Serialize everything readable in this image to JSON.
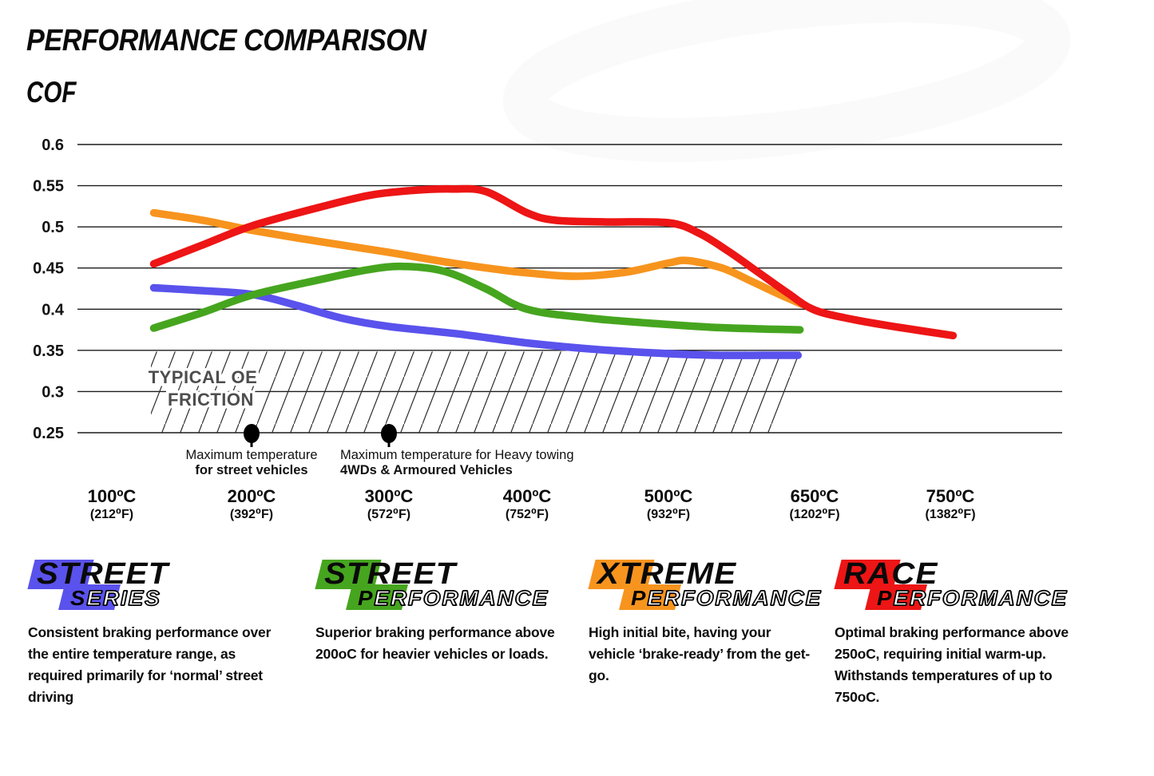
{
  "page": {
    "title": "PERFORMANCE COMPARISON",
    "y_axis_title": "COF"
  },
  "chart_data": {
    "type": "line",
    "title": "PERFORMANCE COMPARISON",
    "ylabel": "COF",
    "xlabel": "",
    "ylim": [
      0.25,
      0.6
    ],
    "y_ticks": [
      0.6,
      0.55,
      0.5,
      0.45,
      0.4,
      0.35,
      0.3,
      0.25
    ],
    "grid": true,
    "legend": "none",
    "x_axis": {
      "values_c": [
        100,
        200,
        300,
        400,
        500,
        650,
        750
      ],
      "labels_c": [
        "100ºC",
        "200ºC",
        "300ºC",
        "400ºC",
        "500ºC",
        "650ºC",
        "750ºC"
      ],
      "labels_f": [
        "(212⁰F)",
        "(392⁰F)",
        "(572⁰F)",
        "(752⁰F)",
        "(932⁰F)",
        "(1202⁰F)",
        "(1382⁰F)"
      ]
    },
    "series": [
      {
        "name": "Street Series",
        "color": "#5a52ec",
        "points": [
          [
            130,
            0.426
          ],
          [
            160,
            0.423
          ],
          [
            200,
            0.418
          ],
          [
            232,
            0.405
          ],
          [
            266,
            0.389
          ],
          [
            300,
            0.379
          ],
          [
            350,
            0.37
          ],
          [
            400,
            0.359
          ],
          [
            450,
            0.351
          ],
          [
            500,
            0.346
          ],
          [
            550,
            0.344
          ],
          [
            600,
            0.344
          ],
          [
            633,
            0.344
          ]
        ]
      },
      {
        "name": "Street Performance",
        "color": "#46a51f",
        "points": [
          [
            130,
            0.377
          ],
          [
            165,
            0.396
          ],
          [
            200,
            0.417
          ],
          [
            250,
            0.436
          ],
          [
            285,
            0.448
          ],
          [
            310,
            0.452
          ],
          [
            340,
            0.446
          ],
          [
            370,
            0.425
          ],
          [
            400,
            0.4
          ],
          [
            445,
            0.389
          ],
          [
            495,
            0.382
          ],
          [
            545,
            0.378
          ],
          [
            595,
            0.376
          ],
          [
            635,
            0.375
          ]
        ]
      },
      {
        "name": "Xtreme Performance",
        "color": "#f7941e",
        "points": [
          [
            130,
            0.517
          ],
          [
            165,
            0.508
          ],
          [
            200,
            0.496
          ],
          [
            250,
            0.482
          ],
          [
            300,
            0.469
          ],
          [
            350,
            0.455
          ],
          [
            395,
            0.445
          ],
          [
            435,
            0.44
          ],
          [
            470,
            0.445
          ],
          [
            500,
            0.456
          ],
          [
            520,
            0.459
          ],
          [
            555,
            0.45
          ],
          [
            585,
            0.434
          ],
          [
            612,
            0.419
          ],
          [
            637,
            0.406
          ]
        ]
      },
      {
        "name": "Race Performance",
        "color": "#ed1515",
        "points": [
          [
            130,
            0.455
          ],
          [
            165,
            0.478
          ],
          [
            200,
            0.501
          ],
          [
            250,
            0.524
          ],
          [
            285,
            0.538
          ],
          [
            315,
            0.544
          ],
          [
            345,
            0.546
          ],
          [
            370,
            0.543
          ],
          [
            400,
            0.517
          ],
          [
            420,
            0.508
          ],
          [
            455,
            0.506
          ],
          [
            500,
            0.505
          ],
          [
            532,
            0.492
          ],
          [
            562,
            0.47
          ],
          [
            592,
            0.445
          ],
          [
            622,
            0.42
          ],
          [
            650,
            0.399
          ],
          [
            680,
            0.387
          ],
          [
            712,
            0.378
          ],
          [
            752,
            0.368
          ]
        ]
      }
    ],
    "oe_zone": {
      "label_line1": "TYPICAL OE",
      "label_line2": "FRICTION",
      "cof_min": 0.25,
      "cof_max": 0.35,
      "x_start_c": 128,
      "x_end_c": 637
    },
    "markers": [
      {
        "x_c": 200,
        "line1": "Maximum temperature",
        "line2": "for street vehicles",
        "align": "center"
      },
      {
        "x_c": 300,
        "line1": "Maximum temperature for Heavy towing",
        "line2": "4WDs & Armoured Vehicles",
        "align": "left"
      }
    ]
  },
  "products": [
    {
      "word1": "STREET",
      "word2_initial": "S",
      "word2_rest": "ERIES",
      "color": "#5a52ec",
      "description": "Consistent braking performance over the entire temperature range, as required primarily for ‘normal’ street driving"
    },
    {
      "word1": "STREET",
      "word2_initial": "P",
      "word2_rest": "ERFORMANCE",
      "color": "#46a51f",
      "description": "Superior braking performance above 200oC for heavier vehicles or loads."
    },
    {
      "word1": "XTREME",
      "word2_initial": "P",
      "word2_rest": "ERFORMANCE",
      "color": "#f7941e",
      "description": "High initial bite, having your vehicle ‘brake-ready’ from the get-go."
    },
    {
      "word1": "RACE",
      "word2_initial": "P",
      "word2_rest": "ERFORMANCE",
      "color": "#ed1515",
      "description": "Optimal braking performance above 250oC, requiring initial warm-up. Withstands temperatures of up to 750oC."
    }
  ]
}
